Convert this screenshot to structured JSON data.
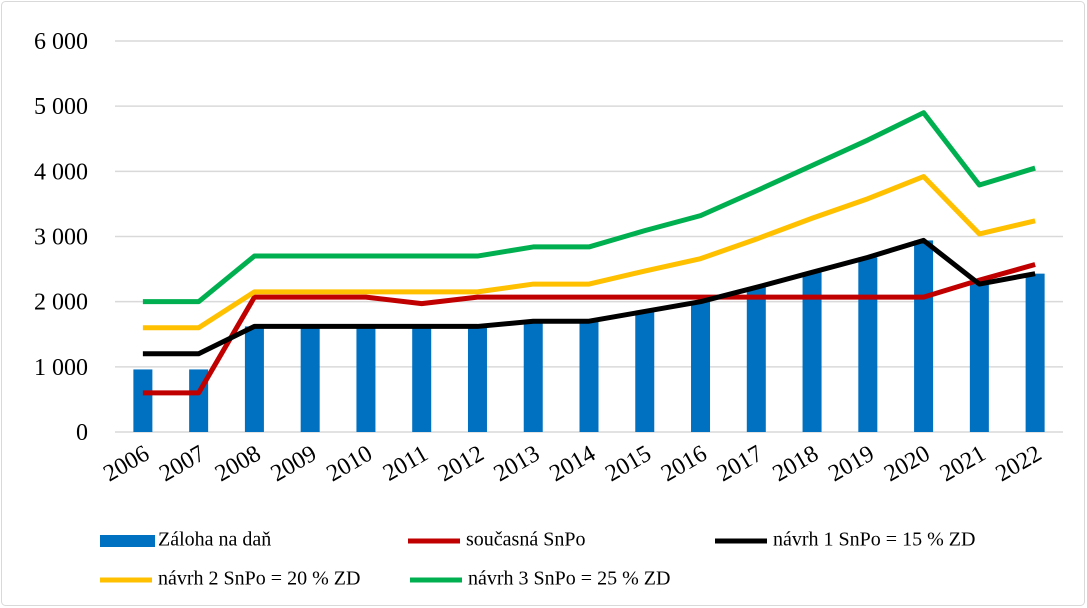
{
  "chart_data": {
    "type": "bar",
    "categories": [
      "2006",
      "2007",
      "2008",
      "2009",
      "2010",
      "2011",
      "2012",
      "2013",
      "2014",
      "2015",
      "2016",
      "2017",
      "2018",
      "2019",
      "2020",
      "2021",
      "2022"
    ],
    "series": [
      {
        "name": "Záloha na daň",
        "type": "bar",
        "color": "#0070c0",
        "values": [
          960,
          960,
          1620,
          1620,
          1620,
          1620,
          1620,
          1700,
          1700,
          1850,
          2000,
          2220,
          2450,
          2680,
          2940,
          2270,
          2430
        ]
      },
      {
        "name": "současná SnPo",
        "type": "line",
        "color": "#c00000",
        "values": [
          600,
          600,
          2070,
          2070,
          2070,
          1970,
          2070,
          2070,
          2070,
          2070,
          2070,
          2070,
          2070,
          2070,
          2070,
          2330,
          2570
        ]
      },
      {
        "name": "návrh 1 SnPo = 15 % ZD",
        "type": "line",
        "color": "#000000",
        "values": [
          1200,
          1200,
          1620,
          1620,
          1620,
          1620,
          1620,
          1700,
          1700,
          1850,
          2000,
          2220,
          2450,
          2680,
          2940,
          2270,
          2430
        ]
      },
      {
        "name": "návrh 2 SnPo = 20 % ZD",
        "type": "line",
        "color": "#ffc000",
        "values": [
          1600,
          1600,
          2150,
          2150,
          2150,
          2150,
          2150,
          2270,
          2270,
          2470,
          2660,
          2960,
          3280,
          3580,
          3920,
          3040,
          3240
        ]
      },
      {
        "name": "návrh 3 SnPo = 25 % ZD",
        "type": "line",
        "color": "#00b050",
        "values": [
          2000,
          2000,
          2700,
          2700,
          2700,
          2700,
          2700,
          2840,
          2840,
          3090,
          3320,
          3700,
          4090,
          4480,
          4900,
          3790,
          4050
        ]
      }
    ],
    "ylim": [
      0,
      6000
    ],
    "yticks": [
      0,
      {
        "value": 1000,
        "label": "1 000"
      },
      {
        "value": 2000,
        "label": "2 000"
      },
      {
        "value": 3000,
        "label": "3 000"
      },
      {
        "value": 4000,
        "label": "4 000"
      },
      {
        "value": 5000,
        "label": "5 000"
      },
      {
        "value": 6000,
        "label": "6 000"
      }
    ],
    "grid": true,
    "legend": "bottom"
  }
}
